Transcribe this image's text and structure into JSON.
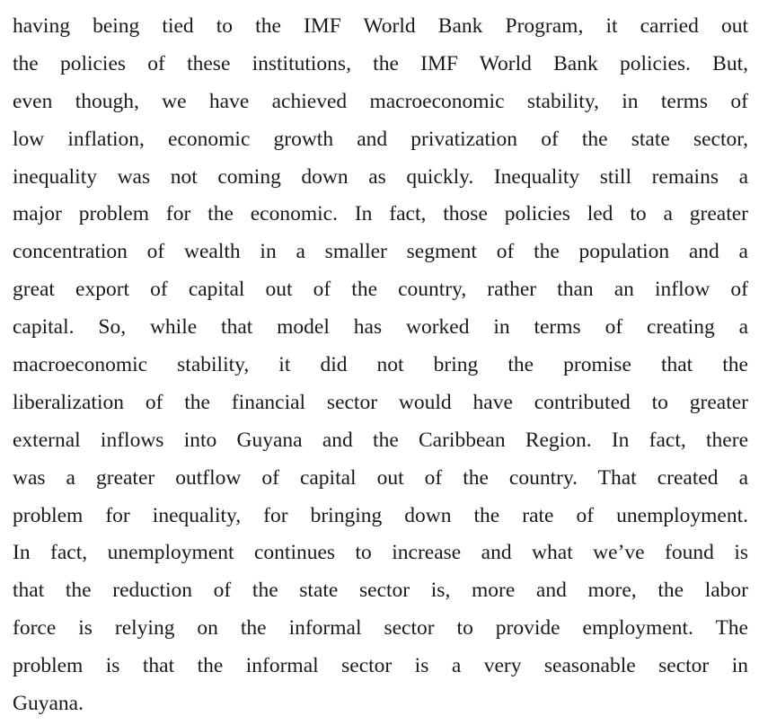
{
  "paragraph": {
    "lines": [
      "having being tied to the IMF World Bank Program, it carried out",
      "the policies of these institutions, the IMF World Bank policies. But,",
      "even though, we have achieved macroeconomic stability, in terms of",
      "low inflation, economic growth and privatization of the state sector,",
      "inequality was not coming down as quickly. Inequality still remains a",
      "major problem for the economic. In fact, those policies led to a greater",
      "concentration of wealth in a smaller segment of the population and a",
      "great export of capital out of the country, rather than an inflow of",
      "capital. So, while that model has worked in terms of creating a",
      "macroeconomic stability, it did not bring the promise that the",
      "liberalization of the financial sector would have contributed to greater",
      "external inflows into Guyana and the Caribbean Region. In fact, there",
      "was a greater outflow of capital out of the country. That created a",
      "problem for inequality, for bringing down the rate of unemployment.",
      "In fact, unemployment continues to increase and what we’ve found is",
      "that the reduction of the state sector is, more and more, the labor",
      "force is relying on the informal sector to provide employment. The",
      "problem is that the informal sector is a very seasonable sector in",
      "Guyana."
    ]
  }
}
